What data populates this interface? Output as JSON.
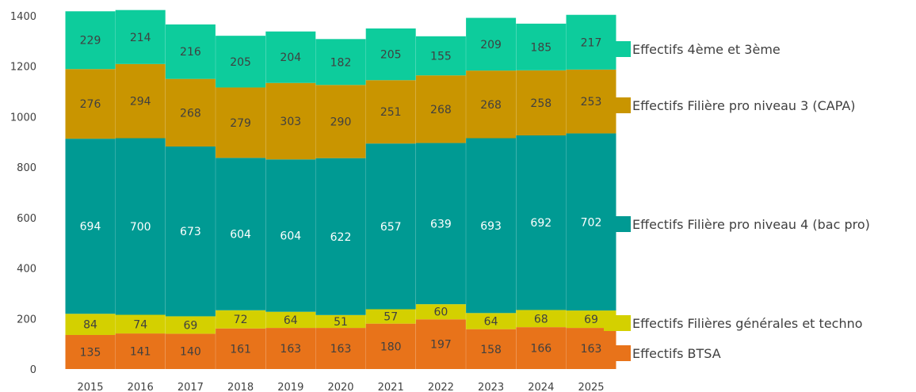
{
  "chart_data": {
    "type": "bar",
    "stacked": true,
    "categories": [
      "2015",
      "2016",
      "2017",
      "2018",
      "2019",
      "2020",
      "2021",
      "2022",
      "2023",
      "2024",
      "2025"
    ],
    "ylim": [
      0,
      1400
    ],
    "yticks": [
      0,
      200,
      400,
      600,
      800,
      1000,
      1200,
      1400
    ],
    "grid": false,
    "legend_position": "right",
    "series": [
      {
        "name": "Effectifs BTSA",
        "color": "#E8731A",
        "label_color": "#404040",
        "values": [
          135,
          141,
          140,
          161,
          163,
          163,
          180,
          197,
          158,
          166,
          163
        ]
      },
      {
        "name": "Effectifs Filières générales et techno",
        "color": "#D4D000",
        "label_color": "#404040",
        "values": [
          84,
          74,
          69,
          72,
          64,
          51,
          57,
          60,
          64,
          68,
          69
        ]
      },
      {
        "name": "Effectifs Filière pro niveau 4 (bac pro)",
        "color": "#009A93",
        "label_color": "#ffffff",
        "values": [
          694,
          700,
          673,
          604,
          604,
          622,
          657,
          639,
          693,
          692,
          702
        ]
      },
      {
        "name": "Effectifs Filière pro niveau 3 (CAPA)",
        "color": "#C99500",
        "label_color": "#404040",
        "values": [
          276,
          294,
          268,
          279,
          303,
          290,
          251,
          268,
          268,
          258,
          253
        ]
      },
      {
        "name": "Effectifs 4ème et 3ème",
        "color": "#0DCC9C",
        "label_color": "#404040",
        "values": [
          229,
          214,
          216,
          205,
          204,
          182,
          205,
          155,
          209,
          185,
          217
        ]
      }
    ],
    "legend_order": [
      4,
      3,
      2,
      1,
      0
    ]
  }
}
